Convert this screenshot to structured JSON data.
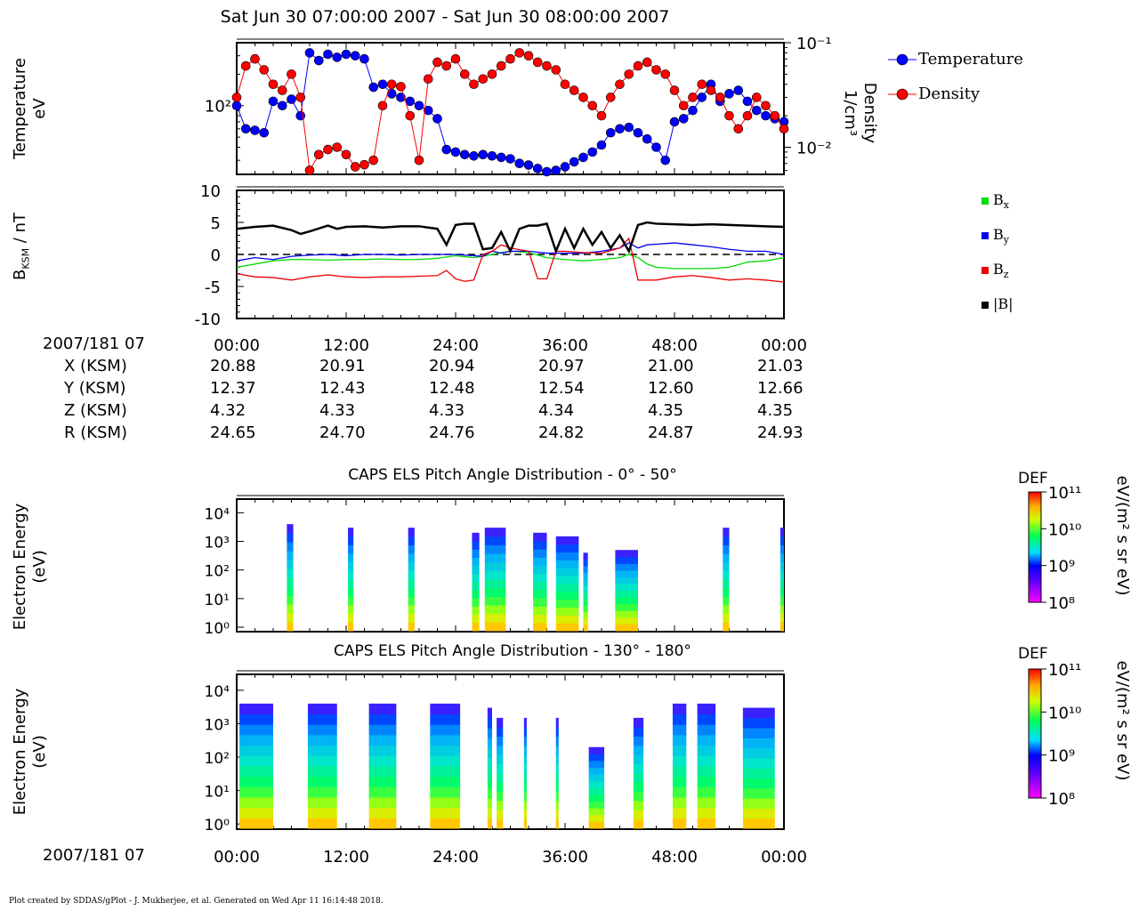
{
  "page_title": "Sat Jun 30 07:00:00 2007 - Sat Jun 30 08:00:00 2007",
  "footer": "Plot created by SDDAS/gPlot - J. Mukherjee, et al.  Generated on Wed Apr 11 16:14:48 2018.",
  "chart_data": [
    {
      "type": "line",
      "id": "moments",
      "ylabel_left": [
        "Temperature",
        "eV"
      ],
      "ylabel_right": [
        "Density",
        "1/cm³"
      ],
      "yticks_left": [
        "10²"
      ],
      "yticks_right": [
        "10⁻¹",
        "10⁻²"
      ],
      "y_log": true,
      "ylim_left": [
        22,
        400
      ],
      "ylim_right": [
        0.0055,
        0.1
      ],
      "xlim": [
        0,
        60
      ],
      "series": [
        {
          "name": "Temperature",
          "color": "#0000ff",
          "axis": "left",
          "x": [
            0,
            1,
            2,
            3,
            4,
            5,
            6,
            7,
            8,
            9,
            10,
            11,
            12,
            13,
            14,
            15,
            16,
            17,
            18,
            19,
            20,
            21,
            22,
            23,
            24,
            25,
            26,
            27,
            28,
            29,
            30,
            31,
            32,
            33,
            34,
            35,
            36,
            37,
            38,
            39,
            40,
            41,
            42,
            43,
            44,
            45,
            46,
            47,
            48,
            49,
            50,
            51,
            52,
            53,
            54,
            55,
            56,
            57,
            58,
            59,
            60
          ],
          "y": [
            100,
            60,
            58,
            55,
            110,
            100,
            115,
            80,
            320,
            270,
            310,
            290,
            310,
            300,
            280,
            150,
            160,
            130,
            120,
            110,
            100,
            90,
            75,
            38,
            36,
            34,
            33,
            34,
            33,
            32,
            31,
            28,
            27,
            25,
            23,
            24,
            26,
            29,
            32,
            36,
            42,
            55,
            60,
            62,
            55,
            48,
            40,
            30,
            70,
            75,
            90,
            120,
            160,
            110,
            130,
            140,
            110,
            90,
            80,
            75,
            70
          ]
        },
        {
          "name": "Density",
          "color": "#ff0000",
          "axis": "right",
          "x": [
            0,
            1,
            2,
            3,
            4,
            5,
            6,
            7,
            8,
            9,
            10,
            11,
            12,
            13,
            14,
            15,
            16,
            17,
            18,
            19,
            20,
            21,
            22,
            23,
            24,
            25,
            26,
            27,
            28,
            29,
            30,
            31,
            32,
            33,
            34,
            35,
            36,
            37,
            38,
            39,
            40,
            41,
            42,
            43,
            44,
            45,
            46,
            47,
            48,
            49,
            50,
            51,
            52,
            53,
            54,
            55,
            56,
            57,
            58,
            59,
            60
          ],
          "y": [
            0.03,
            0.06,
            0.07,
            0.055,
            0.04,
            0.035,
            0.05,
            0.03,
            0.006,
            0.0085,
            0.0095,
            0.01,
            0.0085,
            0.0065,
            0.0068,
            0.0075,
            0.025,
            0.04,
            0.038,
            0.02,
            0.0075,
            0.045,
            0.065,
            0.06,
            0.07,
            0.05,
            0.04,
            0.045,
            0.05,
            0.06,
            0.07,
            0.08,
            0.075,
            0.065,
            0.06,
            0.055,
            0.04,
            0.035,
            0.03,
            0.025,
            0.02,
            0.03,
            0.04,
            0.05,
            0.06,
            0.065,
            0.055,
            0.05,
            0.035,
            0.025,
            0.03,
            0.04,
            0.035,
            0.03,
            0.02,
            0.015,
            0.02,
            0.03,
            0.025,
            0.02,
            0.015
          ]
        }
      ]
    },
    {
      "type": "line",
      "id": "bfield",
      "ylabel": "B_KSM / nT",
      "ylabel_main": "B",
      "ylabel_sub": "KSM",
      "ylabel_unit": " / nT",
      "yticks": [
        "10",
        "5",
        "0",
        "-5",
        "-10"
      ],
      "ylim": [
        -10,
        10
      ],
      "xlim": [
        0,
        60
      ],
      "series": [
        {
          "name": "Bx",
          "label_main": "B",
          "label_sub": "x",
          "color": "#00dd00",
          "x": [
            0,
            2,
            4,
            6,
            8,
            10,
            12,
            14,
            16,
            18,
            20,
            22,
            24,
            26,
            27,
            28,
            29,
            30,
            32,
            34,
            36,
            38,
            40,
            42,
            43,
            44,
            45,
            46,
            48,
            50,
            52,
            54,
            56,
            58,
            60
          ],
          "y": [
            -2,
            -1.5,
            -1,
            -0.8,
            -0.8,
            -0.9,
            -0.8,
            -0.8,
            -0.7,
            -0.8,
            -0.8,
            -0.6,
            -0.2,
            -0.5,
            -0.3,
            0,
            0.3,
            0.5,
            0.3,
            -0.5,
            -0.8,
            -1,
            -0.8,
            -0.5,
            0,
            -0.5,
            -1.5,
            -2,
            -2.2,
            -2.2,
            -2.2,
            -2,
            -1.2,
            -1,
            -0.5
          ]
        },
        {
          "name": "By",
          "label_main": "B",
          "label_sub": "y",
          "color": "#0000ee",
          "x": [
            0,
            2,
            4,
            6,
            8,
            10,
            12,
            14,
            16,
            18,
            20,
            22,
            24,
            26,
            27,
            28,
            29,
            30,
            32,
            34,
            36,
            38,
            40,
            42,
            43,
            44,
            45,
            46,
            48,
            50,
            52,
            54,
            56,
            58,
            60
          ],
          "y": [
            -1,
            -0.5,
            -0.8,
            -0.3,
            -0.1,
            0,
            -0.2,
            0,
            0,
            -0.1,
            0,
            0,
            0,
            -0.2,
            -0.3,
            0.5,
            0.2,
            0.5,
            0.5,
            0.2,
            0.2,
            0.2,
            0.5,
            1,
            1.8,
            1,
            1.5,
            1.6,
            1.8,
            1.5,
            1.2,
            0.8,
            0.5,
            0.5,
            0
          ]
        },
        {
          "name": "Bz",
          "label_main": "B",
          "label_sub": "z",
          "color": "#ee0000",
          "x": [
            0,
            2,
            4,
            6,
            8,
            10,
            12,
            14,
            16,
            18,
            20,
            22,
            23,
            24,
            25,
            26,
            27,
            28,
            29,
            30,
            32,
            33,
            34,
            35,
            36,
            38,
            40,
            42,
            43,
            44,
            45,
            46,
            48,
            50,
            52,
            54,
            56,
            58,
            60
          ],
          "y": [
            -3,
            -3.5,
            -3.6,
            -4,
            -3.5,
            -3.2,
            -3.5,
            -3.6,
            -3.5,
            -3.5,
            -3.4,
            -3.3,
            -2.5,
            -3.8,
            -4.2,
            -4,
            0,
            0.5,
            1.5,
            1,
            0.5,
            -3.8,
            -3.8,
            0.5,
            0.5,
            0.3,
            0.2,
            1,
            2.5,
            -4,
            -4,
            -4,
            -3.5,
            -3.3,
            -3.6,
            -4,
            -3.8,
            -4,
            -4.3
          ]
        },
        {
          "name": "|B|",
          "label_main": "|B|",
          "label_sub": "",
          "color": "#000000",
          "x": [
            0,
            2,
            4,
            6,
            7,
            8,
            10,
            11,
            12,
            14,
            16,
            18,
            20,
            22,
            23,
            24,
            25,
            26,
            27,
            28,
            29,
            30,
            31,
            32,
            33,
            34,
            35,
            36,
            37,
            38,
            39,
            40,
            41,
            42,
            43,
            44,
            45,
            46,
            48,
            50,
            52,
            54,
            56,
            58,
            60
          ],
          "y": [
            4,
            4.3,
            4.5,
            3.8,
            3.2,
            3.6,
            4.5,
            4,
            4.3,
            4.4,
            4.2,
            4.4,
            4.4,
            4,
            1.5,
            4.6,
            4.8,
            4.8,
            0.8,
            1,
            3.5,
            0.5,
            4,
            4.5,
            4.5,
            4.8,
            0.5,
            4,
            1,
            4,
            1.5,
            3.5,
            1,
            3,
            0.5,
            4.6,
            5,
            4.8,
            4.7,
            4.6,
            4.7,
            4.6,
            4.5,
            4.4,
            4.3
          ]
        }
      ]
    },
    {
      "type": "heatmap",
      "id": "pad_low",
      "title": "CAPS ELS Pitch Angle Distribution - 0° - 50°",
      "ylabel": [
        "Electron Energy",
        "(eV)"
      ],
      "yticks": [
        "10⁴",
        "10³",
        "10²",
        "10¹",
        "10⁰"
      ],
      "y_log": true,
      "ylim": [
        0.7,
        30000
      ],
      "xlim": [
        0,
        60
      ],
      "colorbar": {
        "label": "DEF",
        "unit": "eV/(m² s sr eV)",
        "ticks": [
          "10¹¹",
          "10¹⁰",
          "10⁹",
          "10⁸"
        ],
        "range": [
          100000000.0,
          100000000000.0
        ]
      },
      "blocks": [
        {
          "x0": 5.5,
          "x1": 6.2,
          "top": 4000
        },
        {
          "x0": 12.2,
          "x1": 12.8,
          "top": 3000
        },
        {
          "x0": 18.8,
          "x1": 19.5,
          "top": 3000
        },
        {
          "x0": 25.8,
          "x1": 26.6,
          "top": 2000
        },
        {
          "x0": 27.2,
          "x1": 29.5,
          "top": 3000
        },
        {
          "x0": 32.5,
          "x1": 34,
          "top": 2000
        },
        {
          "x0": 35,
          "x1": 37.5,
          "top": 1500
        },
        {
          "x0": 38,
          "x1": 38.5,
          "top": 400
        },
        {
          "x0": 41.5,
          "x1": 44,
          "top": 500
        },
        {
          "x0": 53.3,
          "x1": 54,
          "top": 3000
        },
        {
          "x0": 59.6,
          "x1": 60,
          "top": 3000
        }
      ]
    },
    {
      "type": "heatmap",
      "id": "pad_high",
      "title": "CAPS ELS Pitch Angle Distribution - 130° - 180°",
      "ylabel": [
        "Electron Energy",
        "(eV)"
      ],
      "yticks": [
        "10⁴",
        "10³",
        "10²",
        "10¹",
        "10⁰"
      ],
      "y_log": true,
      "ylim": [
        0.7,
        30000
      ],
      "xlim": [
        0,
        60
      ],
      "colorbar": {
        "label": "DEF",
        "unit": "eV/(m² s sr eV)",
        "ticks": [
          "10¹¹",
          "10¹⁰",
          "10⁹",
          "10⁸"
        ],
        "range": [
          100000000.0,
          100000000000.0
        ]
      },
      "blocks": [
        {
          "x0": 0.3,
          "x1": 4,
          "top": 4000
        },
        {
          "x0": 7.8,
          "x1": 11,
          "top": 4000
        },
        {
          "x0": 14.5,
          "x1": 17.5,
          "top": 4000
        },
        {
          "x0": 21.2,
          "x1": 24.5,
          "top": 4000
        },
        {
          "x0": 27.5,
          "x1": 28,
          "top": 3000
        },
        {
          "x0": 28.5,
          "x1": 29.2,
          "top": 1500
        },
        {
          "x0": 31.5,
          "x1": 31.8,
          "top": 1500
        },
        {
          "x0": 35,
          "x1": 35.3,
          "top": 1500
        },
        {
          "x0": 38.6,
          "x1": 40.3,
          "top": 200
        },
        {
          "x0": 43.5,
          "x1": 44.6,
          "top": 1500
        },
        {
          "x0": 47.8,
          "x1": 49.3,
          "top": 4000
        },
        {
          "x0": 50.5,
          "x1": 52.5,
          "top": 4000
        },
        {
          "x0": 55.5,
          "x1": 59,
          "top": 3000
        }
      ]
    }
  ],
  "time_axis": {
    "label": "2007/181 07",
    "ticks": [
      "00:00",
      "12:00",
      "24:00",
      "36:00",
      "48:00",
      "00:00"
    ]
  },
  "ephemeris": [
    {
      "label": "X (KSM)",
      "values": [
        "20.88",
        "20.91",
        "20.94",
        "20.97",
        "21.00",
        "21.03"
      ]
    },
    {
      "label": "Y (KSM)",
      "values": [
        "12.37",
        "12.43",
        "12.48",
        "12.54",
        "12.60",
        "12.66"
      ]
    },
    {
      "label": "Z (KSM)",
      "values": [
        "4.32",
        "4.33",
        "4.33",
        "4.34",
        "4.35",
        "4.35"
      ]
    },
    {
      "label": "R (KSM)",
      "values": [
        "24.65",
        "24.70",
        "24.76",
        "24.82",
        "24.87",
        "24.93"
      ]
    }
  ]
}
